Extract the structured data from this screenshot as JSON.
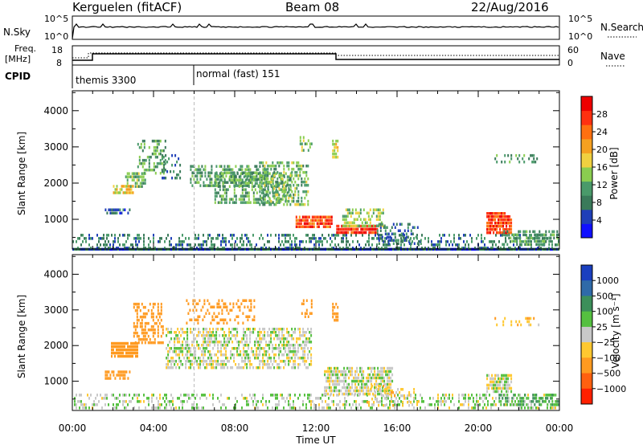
{
  "header": {
    "station": "Kerguelen (fitACF)",
    "beam": "Beam 08",
    "date": "22/Aug/2016"
  },
  "top_panels": {
    "nsky_label": "N.Sky",
    "nsky_ticks": [
      "10^5",
      "10^0"
    ],
    "nsearch_label": "N.Search",
    "nsearch_ticks": [
      "10^5",
      "10^0"
    ],
    "freq_label_line1": "Freq.",
    "freq_label_line2": "[MHz]",
    "freq_ticks": [
      "18",
      "8"
    ],
    "nave_label": "Nave",
    "nave_ticks": [
      "60",
      "0"
    ],
    "cpid_label": "CPID",
    "cpid_modes": [
      {
        "label": "themis 3300",
        "start_hour": 0,
        "end_hour": 6
      },
      {
        "label": "normal (fast) 151",
        "start_hour": 6,
        "end_hour": 24
      }
    ]
  },
  "chart_data": [
    {
      "type": "heatmap",
      "title": "Power",
      "xlabel": "Time UT",
      "ylabel": "Slant Range [km]",
      "x_ticks": [
        "00:00",
        "04:00",
        "08:00",
        "12:00",
        "16:00",
        "20:00",
        "00:00"
      ],
      "xlim_hours": [
        0,
        24
      ],
      "y_ticks": [
        1000,
        2000,
        3000,
        4000
      ],
      "ylim": [
        180,
        4550
      ],
      "colorbar_label": "Power [dB]",
      "colorbar_ticks": [
        4,
        8,
        12,
        16,
        20,
        24,
        28
      ],
      "colorbar_colors": [
        "#1010ff",
        "#1f3fb8",
        "#3a7a5a",
        "#4a9a6a",
        "#8acd50",
        "#f0d040",
        "#f5a020",
        "#ff7010",
        "#ff3010",
        "#ee0000"
      ],
      "regions": [
        {
          "t0": 0.0,
          "t1": 24.0,
          "r0": 190,
          "r1": 210,
          "value": 8
        },
        {
          "t0": 0.0,
          "t1": 24.0,
          "r0": 230,
          "r1": 600,
          "value": 10,
          "density": 0.35
        },
        {
          "t0": 1.6,
          "t1": 2.8,
          "r0": 1150,
          "r1": 1300,
          "value": 8,
          "density": 0.7
        },
        {
          "t0": 2.0,
          "t1": 3.0,
          "r0": 1750,
          "r1": 1950,
          "value": 18,
          "density": 0.85
        },
        {
          "t0": 2.6,
          "t1": 3.6,
          "r0": 1900,
          "r1": 2300,
          "value": 14,
          "density": 0.6
        },
        {
          "t0": 3.2,
          "t1": 4.6,
          "r0": 2300,
          "r1": 3200,
          "value": 13,
          "density": 0.4
        },
        {
          "t0": 4.4,
          "t1": 5.4,
          "r0": 2100,
          "r1": 2800,
          "value": 10,
          "density": 0.3
        },
        {
          "t0": 5.8,
          "t1": 9.6,
          "r0": 1900,
          "r1": 2500,
          "value": 12,
          "density": 0.55
        },
        {
          "t0": 7.0,
          "t1": 10.8,
          "r0": 1500,
          "r1": 2300,
          "value": 13,
          "density": 0.55
        },
        {
          "t0": 9.2,
          "t1": 11.6,
          "r0": 1400,
          "r1": 2600,
          "value": 14,
          "density": 0.5
        },
        {
          "t0": 11.2,
          "t1": 11.8,
          "r0": 2800,
          "r1": 3300,
          "value": 14,
          "density": 0.4
        },
        {
          "t0": 12.8,
          "t1": 13.1,
          "r0": 2700,
          "r1": 3200,
          "value": 18,
          "density": 0.7
        },
        {
          "t0": 11.0,
          "t1": 12.8,
          "r0": 800,
          "r1": 1100,
          "value": 26,
          "density": 0.8
        },
        {
          "t0": 13.0,
          "t1": 15.0,
          "r0": 650,
          "r1": 850,
          "value": 29,
          "density": 0.95
        },
        {
          "t0": 13.3,
          "t1": 15.4,
          "r0": 850,
          "r1": 1300,
          "value": 16,
          "density": 0.6
        },
        {
          "t0": 15.0,
          "t1": 17.2,
          "r0": 300,
          "r1": 900,
          "value": 9,
          "density": 0.3
        },
        {
          "t0": 20.4,
          "t1": 21.6,
          "r0": 600,
          "r1": 1200,
          "value": 27,
          "density": 0.85
        },
        {
          "t0": 21.0,
          "t1": 24.0,
          "r0": 300,
          "r1": 700,
          "value": 12,
          "density": 0.45
        },
        {
          "t0": 20.8,
          "t1": 23.0,
          "r0": 2600,
          "r1": 2800,
          "value": 12,
          "density": 0.3
        }
      ]
    },
    {
      "type": "heatmap",
      "title": "Velocity",
      "xlabel": "Time UT",
      "ylabel": "Slant Range [km]",
      "x_ticks": [
        "00:00",
        "04:00",
        "08:00",
        "12:00",
        "16:00",
        "20:00",
        "00:00"
      ],
      "xlim_hours": [
        0,
        24
      ],
      "y_ticks": [
        1000,
        2000,
        3000,
        4000
      ],
      "ylim": [
        180,
        4550
      ],
      "colorbar_label": "Velocity [m s⁻¹]",
      "colorbar_ticks": [
        "1000",
        "500",
        "100",
        "25",
        "−25",
        "−100",
        "−500",
        "−1000"
      ],
      "colorbar_colors": [
        "#1a3fbf",
        "#2f6aa8",
        "#3c8f5a",
        "#55c040",
        "#c8c8c8",
        "#ffc830",
        "#ff9a20",
        "#ff6010",
        "#ff2000"
      ],
      "regions": [
        {
          "t0": 0.0,
          "t1": 24.0,
          "r0": 230,
          "r1": 650,
          "value": 20,
          "density": 0.35
        },
        {
          "t0": 1.6,
          "t1": 2.8,
          "r0": 1100,
          "r1": 1300,
          "value": -200,
          "density": 0.7
        },
        {
          "t0": 1.9,
          "t1": 3.2,
          "r0": 1650,
          "r1": 2100,
          "value": -300,
          "density": 0.85
        },
        {
          "t0": 3.0,
          "t1": 4.5,
          "r0": 2100,
          "r1": 3200,
          "value": -300,
          "density": 0.5
        },
        {
          "t0": 4.6,
          "t1": 11.8,
          "r0": 1400,
          "r1": 2500,
          "value": 0,
          "density": 0.55
        },
        {
          "t0": 5.6,
          "t1": 9.0,
          "r0": 2600,
          "r1": 3300,
          "value": -400,
          "density": 0.3
        },
        {
          "t0": 11.2,
          "t1": 11.8,
          "r0": 2800,
          "r1": 3300,
          "value": -300,
          "density": 0.4
        },
        {
          "t0": 12.8,
          "t1": 13.1,
          "r0": 2700,
          "r1": 3200,
          "value": -150,
          "density": 0.7
        },
        {
          "t0": 12.4,
          "t1": 15.8,
          "r0": 650,
          "r1": 1400,
          "value": 0,
          "density": 0.7
        },
        {
          "t0": 14.5,
          "t1": 17.0,
          "r0": 300,
          "r1": 900,
          "value": -50,
          "density": 0.3
        },
        {
          "t0": 20.4,
          "t1": 21.6,
          "r0": 700,
          "r1": 1200,
          "value": 0,
          "density": 0.8
        },
        {
          "t0": 21.0,
          "t1": 24.0,
          "r0": 300,
          "r1": 650,
          "value": 100,
          "density": 0.45
        },
        {
          "t0": 20.8,
          "t1": 23.0,
          "r0": 2600,
          "r1": 2800,
          "value": -60,
          "density": 0.3
        }
      ]
    }
  ]
}
